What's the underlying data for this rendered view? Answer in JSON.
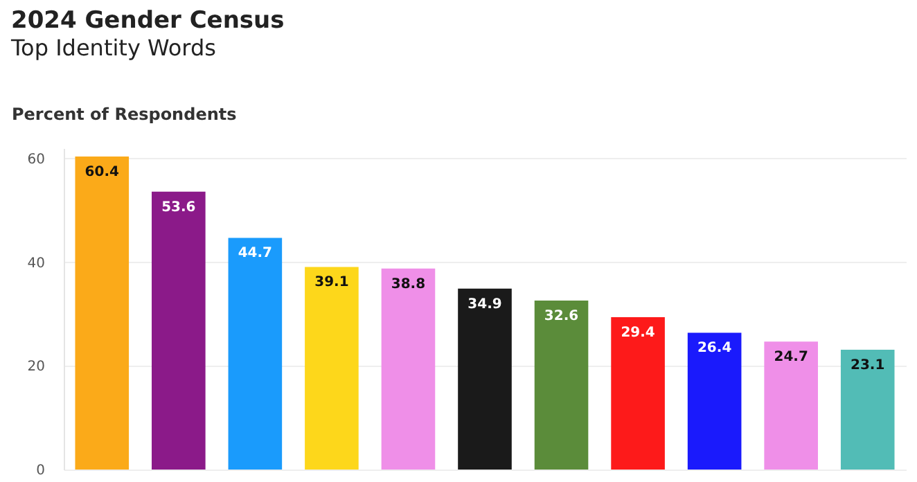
{
  "chart_data": {
    "type": "bar",
    "title": "2024 Gender Census",
    "subtitle": "Top Identity Words",
    "ylabel": "Percent of Respondents",
    "categories": [
      null,
      null,
      null,
      null,
      null,
      null,
      null,
      null,
      null,
      null,
      null
    ],
    "values": [
      60.4,
      53.6,
      44.7,
      39.1,
      38.8,
      34.9,
      32.6,
      29.4,
      26.4,
      24.7,
      23.1
    ],
    "colors": [
      "#fbaa19",
      "#8b1a89",
      "#1a9bfc",
      "#fdd71b",
      "#ef8fe8",
      "#1a1a1a",
      "#5b8c3a",
      "#fd1a1a",
      "#1a1afc",
      "#ef8fe8",
      "#52bcb6"
    ],
    "ylim": [
      0,
      62
    ],
    "yticks": [
      0,
      20,
      40,
      60
    ],
    "grid": "y",
    "data_labels": true,
    "tick_labels": "y"
  }
}
